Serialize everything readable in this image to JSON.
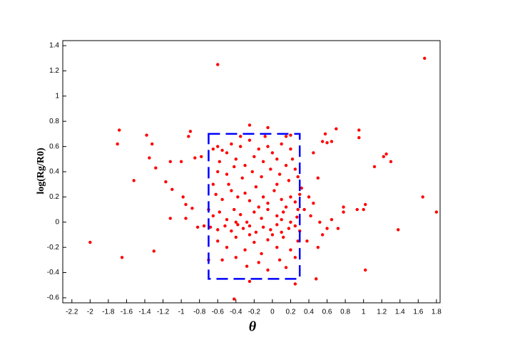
{
  "chart_data": {
    "type": "scatter",
    "x_label": "θ",
    "y_label": "log(Rg/R0)",
    "color": "#ff0000",
    "xlim": [
      -2.3,
      1.84
    ],
    "ylim": [
      -0.64,
      1.44
    ],
    "xticks": [
      -2.2,
      -2,
      -1.8,
      -1.6,
      -1.4,
      -1.2,
      -1,
      -0.8,
      -0.6,
      -0.4,
      -0.2,
      0,
      0.2,
      0.4,
      0.6,
      0.8,
      1,
      1.2,
      1.4,
      1.6,
      1.8
    ],
    "yticks": [
      -0.6,
      -0.4,
      -0.2,
      0,
      0.2,
      0.4,
      0.6,
      0.8,
      1,
      1.2,
      1.4
    ],
    "region": {
      "xlim": [
        -0.7,
        0.3
      ],
      "ylim": [
        -0.45,
        0.7
      ],
      "color": "#0000ff"
    },
    "x": [
      -2.0,
      -1.7,
      -1.68,
      -1.65,
      -1.52,
      -1.38,
      -1.35,
      -1.32,
      -1.3,
      -1.28,
      -1.17,
      -1.12,
      -1.12,
      -1.1,
      -1.0,
      -0.98,
      -0.95,
      -0.92,
      -0.9,
      -0.88,
      -0.85,
      -0.95,
      -0.78,
      -0.75,
      -0.6,
      1.67,
      1.65,
      1.8,
      1.38,
      1.3,
      1.25,
      1.22,
      1.12,
      1.02,
      1.0,
      1.02,
      0.95,
      0.95,
      0.93,
      0.78,
      0.78,
      0.7,
      0.65,
      0.6,
      0.58,
      0.55,
      0.5,
      0.48,
      0.25,
      -0.25,
      -0.42,
      -0.25,
      -0.05,
      0.2,
      0.52,
      0.6,
      0.55,
      0.65,
      0.72,
      0.4,
      0.45,
      0.42,
      0.38,
      0.35,
      0.5,
      0.45,
      -0.82,
      -0.65,
      -0.7,
      -0.7,
      -0.65,
      -0.6,
      -0.55,
      -0.5,
      -0.45,
      -0.4,
      -0.35,
      -0.3,
      -0.25,
      -0.2,
      -0.15,
      -0.1,
      -0.05,
      0.0,
      0.05,
      0.1,
      0.15,
      0.2,
      0.25,
      -0.6,
      -0.5,
      -0.42,
      -0.33,
      -0.22,
      -0.12,
      -0.02,
      0.08,
      0.18,
      0.28,
      -0.62,
      -0.55,
      -0.45,
      -0.38,
      -0.3,
      -0.25,
      -0.18,
      -0.1,
      -0.05,
      0.02,
      0.1,
      0.15,
      0.2,
      0.25,
      0.3,
      0.32,
      0.28,
      -0.65,
      -0.58,
      -0.5,
      -0.42,
      -0.35,
      -0.28,
      -0.2,
      -0.12,
      -0.05,
      0.05,
      0.12,
      0.2,
      0.27,
      -0.68,
      -0.6,
      -0.52,
      -0.45,
      -0.38,
      -0.32,
      -0.25,
      -0.18,
      -0.1,
      -0.02,
      0.05,
      0.1,
      0.18,
      0.25,
      0.3,
      -0.6,
      -0.5,
      -0.4,
      -0.3,
      -0.2,
      -0.12,
      -0.05,
      0.05,
      0.12,
      0.2,
      0.28,
      -0.55,
      -0.4,
      -0.28,
      -0.15,
      -0.05,
      0.08,
      0.15,
      0.25,
      -0.35,
      -0.08,
      0.15,
      -0.48,
      0.05,
      -0.15,
      0.22,
      -0.58,
      0.0,
      -0.25,
      0.1,
      -0.4
    ],
    "values": [
      -0.16,
      0.62,
      0.73,
      -0.28,
      0.33,
      0.69,
      0.51,
      0.62,
      -0.23,
      0.43,
      0.32,
      0.48,
      0.03,
      0.26,
      0.48,
      0.2,
      0.14,
      0.68,
      0.72,
      0.11,
      0.51,
      0.03,
      0.52,
      -0.03,
      1.25,
      1.3,
      0.2,
      0.08,
      -0.06,
      0.48,
      0.54,
      0.52,
      0.44,
      0.14,
      0.1,
      -0.38,
      0.67,
      0.73,
      0.1,
      0.08,
      0.12,
      0.74,
      0.64,
      0.63,
      0.7,
      0.64,
      -0.2,
      -0.45,
      -0.49,
      -0.47,
      -0.61,
      0.77,
      0.75,
      0.69,
      0.0,
      -0.05,
      -0.1,
      0.02,
      -0.05,
      0.2,
      0.15,
      0.05,
      -0.15,
      0.1,
      0.35,
      0.55,
      -0.04,
      0.3,
      0.1,
      -0.3,
      0.58,
      0.6,
      0.57,
      0.55,
      0.62,
      0.5,
      0.6,
      0.45,
      0.65,
      0.52,
      0.58,
      0.48,
      0.6,
      0.55,
      0.5,
      0.62,
      0.45,
      0.58,
      0.42,
      0.4,
      0.38,
      0.44,
      0.35,
      0.4,
      0.36,
      0.42,
      0.38,
      0.33,
      0.36,
      0.22,
      0.18,
      0.25,
      0.2,
      0.23,
      0.17,
      0.28,
      0.2,
      0.15,
      0.25,
      0.18,
      0.12,
      0.2,
      0.16,
      0.22,
      0.27,
      0.1,
      0.05,
      0.08,
      0.02,
      0.1,
      0.06,
      0.0,
      0.08,
      0.03,
      0.1,
      0.05,
      0.08,
      0.0,
      0.04,
      -0.04,
      -0.06,
      -0.03,
      -0.07,
      -0.02,
      -0.05,
      -0.03,
      -0.08,
      -0.04,
      -0.06,
      -0.02,
      -0.08,
      -0.05,
      -0.03,
      -0.07,
      -0.15,
      -0.2,
      -0.12,
      -0.22,
      -0.16,
      -0.25,
      -0.14,
      -0.2,
      -0.12,
      -0.22,
      -0.15,
      -0.3,
      -0.28,
      -0.35,
      -0.32,
      -0.38,
      -0.3,
      -0.36,
      -0.28,
      0.68,
      0.68,
      0.68,
      0.3,
      0.3,
      0.12,
      0.5,
      0.48,
      -0.1,
      -0.1,
      0.02,
      0.0
    ]
  }
}
